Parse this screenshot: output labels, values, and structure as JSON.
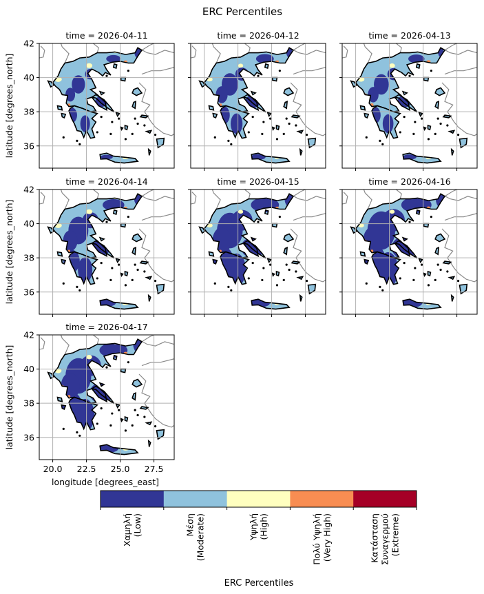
{
  "figure": {
    "title": "ERC Percentiles"
  },
  "axes": {
    "xlabel": "longitude [degrees_east]",
    "ylabel": "latitude [degrees_north]",
    "xticks": [
      20.0,
      22.5,
      25.0,
      27.5
    ],
    "xtick_labels": [
      "20.0",
      "22.5",
      "25.0",
      "27.5"
    ],
    "yticks": [
      36,
      38,
      40,
      42
    ],
    "ytick_labels": [
      "36",
      "38",
      "40",
      "42"
    ],
    "xlim": [
      19.0,
      29.0
    ],
    "ylim": [
      34.7,
      42.0
    ],
    "grid": true
  },
  "panels": [
    {
      "title": "time = 2026-04-11",
      "extent": {
        "low": 0.08,
        "high": 0.06,
        "very_high": 0.03,
        "extreme": 0.01
      },
      "east_low_patch": true
    },
    {
      "title": "time = 2026-04-12",
      "extent": {
        "low": 0.12,
        "high": 0.04,
        "very_high": 0.03,
        "extreme": 0.01
      },
      "east_low_patch": false
    },
    {
      "title": "time = 2026-04-13",
      "extent": {
        "low": 0.1,
        "high": 0.05,
        "very_high": 0.04,
        "extreme": 0.02
      },
      "east_low_patch": false
    },
    {
      "title": "time = 2026-04-14",
      "extent": {
        "low": 0.18,
        "high": 0.06,
        "very_high": 0.02,
        "extreme": 0.005
      },
      "east_low_patch": false
    },
    {
      "title": "time = 2026-04-15",
      "extent": {
        "low": 0.3,
        "high": 0.04,
        "very_high": 0.02,
        "extreme": 0.005
      },
      "east_low_patch": false
    },
    {
      "title": "time = 2026-04-16",
      "extent": {
        "low": 0.35,
        "high": 0.04,
        "very_high": 0.03,
        "extreme": 0.005
      },
      "east_low_patch": false
    },
    {
      "title": "time = 2026-04-17",
      "extent": {
        "low": 0.3,
        "high": 0.05,
        "very_high": 0.03,
        "extreme": 0.01
      },
      "east_low_patch": false
    }
  ],
  "colorbar": {
    "label": "ERC Percentiles",
    "classes": [
      {
        "key": "low",
        "lines": [
          "Χαμηλή",
          "(Low)"
        ],
        "color": "#313695"
      },
      {
        "key": "moderate",
        "lines": [
          "Μέση",
          "(Moderate)"
        ],
        "color": "#8fc2dd"
      },
      {
        "key": "high",
        "lines": [
          "Υψηλή",
          "(High)"
        ],
        "color": "#ffffbf"
      },
      {
        "key": "very_high",
        "lines": [
          "Πολύ Υψηλή",
          "(Very High)"
        ],
        "color": "#f88d52"
      },
      {
        "key": "extreme",
        "lines": [
          "Κατάσταση",
          "Συναγερμού",
          "(Extreme)"
        ],
        "color": "#a50026"
      }
    ]
  },
  "colors": {
    "grid": "#b0b0b0",
    "borders": "#8a8a8a",
    "coastline": "#000000"
  }
}
